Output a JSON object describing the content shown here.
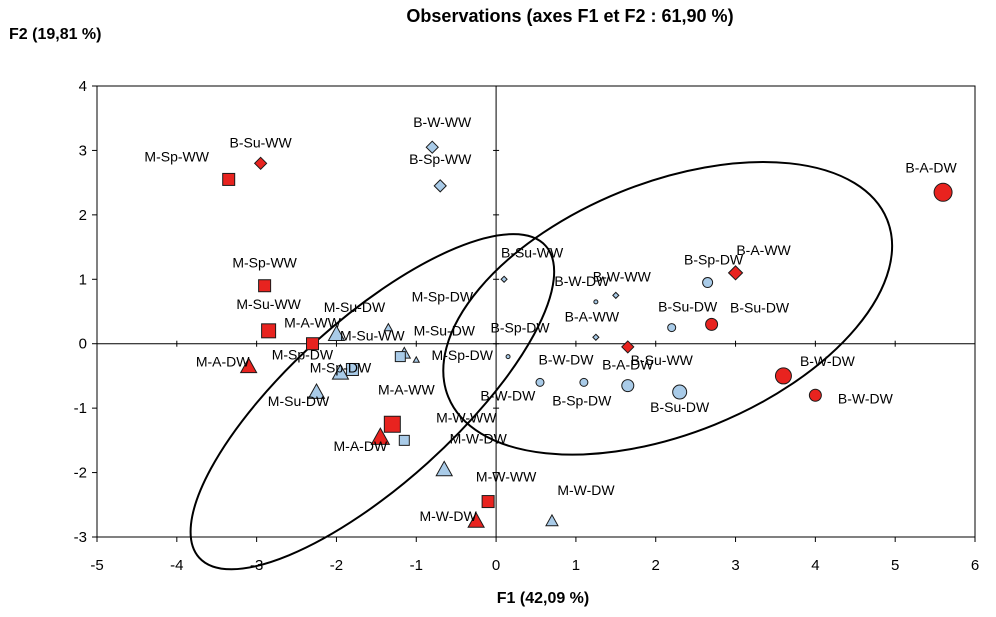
{
  "chart_data": {
    "type": "scatter",
    "title": "Observations (axes F1 et F2 : 61,90 %)",
    "xlabel": "F1 (42,09 %)",
    "ylabel": "F2 (19,81 %)",
    "xlim": [
      -5,
      6
    ],
    "ylim": [
      -3,
      4
    ],
    "xticks": [
      "-5",
      "-4",
      "-3",
      "-2",
      "-1",
      "0",
      "1",
      "2",
      "3",
      "4",
      "5",
      "6"
    ],
    "yticks": [
      "-3",
      "-2",
      "-1",
      "0",
      "1",
      "2",
      "3",
      "4"
    ],
    "grid": false,
    "colors": {
      "red": "#e8231f",
      "blue": "#a9cbe8",
      "stroke": "#1a1a1a"
    },
    "ellipses": [
      {
        "name": "left-ellipse",
        "cx": -1.55,
        "cy": -0.9,
        "rx": 3.25,
        "ry": 1.15,
        "angle_deg": -42
      },
      {
        "name": "right-ellipse",
        "cx": 2.15,
        "cy": 0.55,
        "rx": 3.3,
        "ry": 1.75,
        "angle_deg": -22
      }
    ],
    "points": [
      {
        "label": "B-A-DW",
        "x": 5.6,
        "y": 2.35,
        "shape": "circle",
        "color": "red",
        "size": 9,
        "ldx": -12,
        "ldy": -20
      },
      {
        "label": "B-Su-WW",
        "x": -2.95,
        "y": 2.8,
        "shape": "diamond",
        "color": "red",
        "size": 6,
        "ldx": 0,
        "ldy": -16
      },
      {
        "label": "M-Sp-WW",
        "x": -3.35,
        "y": 2.55,
        "shape": "square",
        "color": "red",
        "size": 6,
        "ldx": -52,
        "ldy": -18
      },
      {
        "label": "B-W-WW",
        "x": -0.8,
        "y": 3.05,
        "shape": "diamond",
        "color": "blue",
        "size": 6,
        "ldx": 10,
        "ldy": -20
      },
      {
        "label": "B-Sp-WW",
        "x": -0.7,
        "y": 2.45,
        "shape": "diamond",
        "color": "blue",
        "size": 6,
        "ldx": 0,
        "ldy": -22
      },
      {
        "label": "M-Sp-WW",
        "x": -2.9,
        "y": 0.9,
        "shape": "square",
        "color": "red",
        "size": 6,
        "ldx": 0,
        "ldy": -18
      },
      {
        "label": "M-Su-WW",
        "x": -2.85,
        "y": 0.2,
        "shape": "square",
        "color": "red",
        "size": 7,
        "ldx": 0,
        "ldy": -22
      },
      {
        "label": "M-A-WW",
        "x": -2.3,
        "y": 0.0,
        "shape": "square",
        "color": "red",
        "size": 6,
        "ldx": 0,
        "ldy": -16
      },
      {
        "label": "M-Su-DW",
        "x": -2.0,
        "y": 0.15,
        "shape": "triangle",
        "color": "blue",
        "size": 8,
        "ldx": 18,
        "ldy": -22
      },
      {
        "label": "M-Sp-DW",
        "x": -1.35,
        "y": 0.25,
        "shape": "triangle",
        "color": "blue",
        "size": 4,
        "ldx": 54,
        "ldy": -26
      },
      {
        "label": "M-Su-DW",
        "x": -1.15,
        "y": -0.15,
        "shape": "triangle",
        "color": "blue",
        "size": 6,
        "ldx": 40,
        "ldy": -18
      },
      {
        "label": "M-Su-WW",
        "x": -1.2,
        "y": -0.2,
        "shape": "square",
        "color": "blue",
        "size": 5,
        "ldx": -28,
        "ldy": -16
      },
      {
        "label": "M-Sp-DW",
        "x": -1.0,
        "y": -0.25,
        "shape": "triangle",
        "color": "blue",
        "size": 3,
        "ldx": 46,
        "ldy": 0
      },
      {
        "label": "M-Sp-DW",
        "x": -1.8,
        "y": -0.4,
        "shape": "square",
        "color": "blue",
        "size": 6,
        "ldx": -50,
        "ldy": -10
      },
      {
        "label": "M-A-DW",
        "x": -3.1,
        "y": -0.35,
        "shape": "triangle",
        "color": "red",
        "size": 8,
        "ldx": -26,
        "ldy": 0
      },
      {
        "label": "M-Sp-DW",
        "x": -1.95,
        "y": -0.45,
        "shape": "triangle",
        "color": "blue",
        "size": 8,
        "ldx": 0,
        "ldy": 0
      },
      {
        "label": "M-Su-DW",
        "x": -2.25,
        "y": -0.75,
        "shape": "triangle",
        "color": "blue",
        "size": 8,
        "ldx": -18,
        "ldy": 14
      },
      {
        "label": "M-A-WW",
        "x": -1.3,
        "y": -1.25,
        "shape": "square",
        "color": "red",
        "size": 8,
        "ldx": 14,
        "ldy": -30
      },
      {
        "label": "M-A-DW",
        "x": -1.45,
        "y": -1.45,
        "shape": "triangle",
        "color": "red",
        "size": 9,
        "ldx": -20,
        "ldy": 14
      },
      {
        "label": "M-W-WW",
        "x": -1.15,
        "y": -1.5,
        "shape": "square",
        "color": "blue",
        "size": 5,
        "ldx": 62,
        "ldy": -18
      },
      {
        "label": "M-W-DW",
        "x": -0.65,
        "y": -1.95,
        "shape": "triangle",
        "color": "blue",
        "size": 8,
        "ldx": 34,
        "ldy": -26
      },
      {
        "label": "M-W-WW",
        "x": -0.1,
        "y": -2.45,
        "shape": "square",
        "color": "red",
        "size": 6,
        "ldx": 18,
        "ldy": -20
      },
      {
        "label": "M-W-DW",
        "x": -0.25,
        "y": -2.75,
        "shape": "triangle",
        "color": "red",
        "size": 8,
        "ldx": -28,
        "ldy": 0
      },
      {
        "label": "M-W-DW",
        "x": 0.7,
        "y": -2.75,
        "shape": "triangle",
        "color": "blue",
        "size": 6,
        "ldx": 34,
        "ldy": -26
      },
      {
        "label": "B-Su-WW",
        "x": 0.1,
        "y": 1.0,
        "shape": "diamond",
        "color": "blue",
        "size": 3,
        "ldx": 28,
        "ldy": -22
      },
      {
        "label": "B-W-DW",
        "x": 1.25,
        "y": 0.65,
        "shape": "circle",
        "color": "blue",
        "size": 2,
        "ldx": -14,
        "ldy": -16
      },
      {
        "label": "B-W-WW",
        "x": 1.5,
        "y": 0.75,
        "shape": "diamond",
        "color": "blue",
        "size": 3,
        "ldx": 6,
        "ldy": -14
      },
      {
        "label": "B-A-WW",
        "x": 1.25,
        "y": 0.1,
        "shape": "diamond",
        "color": "blue",
        "size": 3,
        "ldx": -4,
        "ldy": -16
      },
      {
        "label": "B-Sp-DW",
        "x": 0.15,
        "y": -0.2,
        "shape": "circle",
        "color": "blue",
        "size": 2,
        "ldx": 12,
        "ldy": -24
      },
      {
        "label": "B-Su-WW",
        "x": 1.65,
        "y": -0.05,
        "shape": "diamond",
        "color": "red",
        "size": 6,
        "ldx": 34,
        "ldy": 18
      },
      {
        "label": "B-Sp-DW",
        "x": 2.65,
        "y": 0.95,
        "shape": "circle",
        "color": "blue",
        "size": 5,
        "ldx": 6,
        "ldy": -18
      },
      {
        "label": "B-A-WW",
        "x": 3.0,
        "y": 1.1,
        "shape": "diamond",
        "color": "red",
        "size": 7,
        "ldx": 28,
        "ldy": -18
      },
      {
        "label": "B-Su-DW",
        "x": 2.2,
        "y": 0.25,
        "shape": "circle",
        "color": "blue",
        "size": 4,
        "ldx": 16,
        "ldy": -16
      },
      {
        "label": "B-Su-DW",
        "x": 2.7,
        "y": 0.3,
        "shape": "circle",
        "color": "red",
        "size": 6,
        "ldx": 48,
        "ldy": -12
      },
      {
        "label": "B-W-DW",
        "x": 0.55,
        "y": -0.6,
        "shape": "circle",
        "color": "blue",
        "size": 4,
        "ldx": 26,
        "ldy": -18
      },
      {
        "label": "B-W-DW",
        "x": 1.1,
        "y": -0.6,
        "shape": "circle",
        "color": "blue",
        "size": 4,
        "ldx": -76,
        "ldy": 18
      },
      {
        "label": "B-A-DW",
        "x": 1.65,
        "y": -0.65,
        "shape": "circle",
        "color": "blue",
        "size": 6,
        "ldx": 0,
        "ldy": -16
      },
      {
        "label": "B-Sp-DW",
        "x": 1.65,
        "y": -0.65,
        "shape": "circle",
        "color": "blue",
        "size": 0,
        "ldx": -46,
        "ldy": 20
      },
      {
        "label": "B-Su-DW",
        "x": 2.3,
        "y": -0.75,
        "shape": "circle",
        "color": "blue",
        "size": 7,
        "ldx": 0,
        "ldy": 20
      },
      {
        "label": "B-W-DW",
        "x": 3.6,
        "y": -0.5,
        "shape": "circle",
        "color": "red",
        "size": 8,
        "ldx": 44,
        "ldy": -10
      },
      {
        "label": "B-W-DW",
        "x": 4.0,
        "y": -0.8,
        "shape": "circle",
        "color": "red",
        "size": 6,
        "ldx": 50,
        "ldy": 8
      }
    ]
  }
}
